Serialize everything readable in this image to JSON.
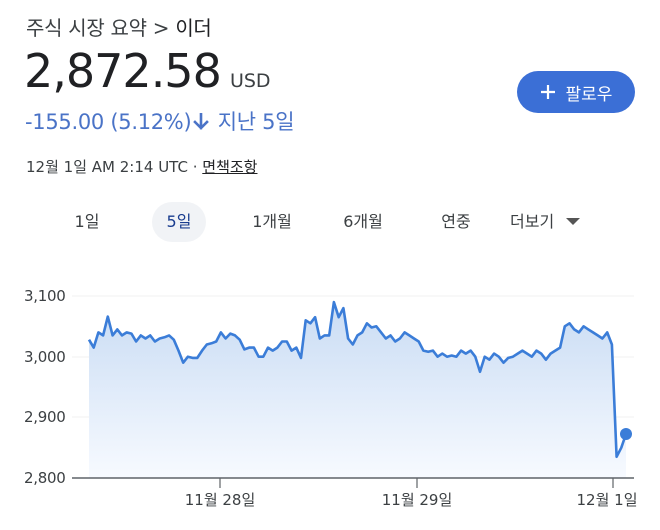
{
  "header": {
    "breadcrumb_parent": "주식 시장 요약",
    "breadcrumb_sep": ">",
    "breadcrumb_current": "이더",
    "price": "2,872.58",
    "currency": "USD",
    "change_value": "-155.00",
    "change_percent": "(5.12%)",
    "change_direction_icon": "arrow-down-icon",
    "change_period": "지난 5일",
    "change_color": "#4a73c7",
    "follow_button_label": "팔로우",
    "follow_button_color": "#3b6fd6"
  },
  "meta": {
    "timestamp": "12월 1일 AM 2:14 UTC",
    "separator": "·",
    "disclaimer_link": "면책조항"
  },
  "tabs": [
    {
      "label": "1일",
      "active": false
    },
    {
      "label": "5일",
      "active": true
    },
    {
      "label": "1개월",
      "active": false
    },
    {
      "label": "6개월",
      "active": false
    },
    {
      "label": "연중",
      "active": false
    },
    {
      "label": "더보기",
      "active": false
    }
  ],
  "chart_data": {
    "type": "area",
    "title": "",
    "xlabel": "",
    "ylabel": "",
    "ylim": [
      2800,
      3100
    ],
    "yticks": [
      "3,100",
      "3,000",
      "2,900",
      "2,800"
    ],
    "xticks": [
      "11월 28일",
      "11월 29일",
      "12월 1일"
    ],
    "grid": true,
    "legend": "none",
    "line_color": "#3b7dd8",
    "series": [
      {
        "name": "이더 (USD)",
        "x": [
          0,
          1,
          2,
          3,
          4,
          5,
          6,
          7,
          8,
          9,
          10,
          11,
          12,
          13,
          14,
          15,
          16,
          17,
          18,
          19,
          20,
          21,
          22,
          23,
          24,
          25,
          26,
          27,
          28,
          29,
          30,
          31,
          32,
          33,
          34,
          35,
          36,
          37,
          38,
          39,
          40,
          41,
          42,
          43,
          44,
          45,
          46,
          47,
          48,
          49,
          50,
          51,
          52,
          53,
          54,
          55,
          56,
          57,
          58,
          59,
          60,
          61,
          62,
          63,
          64,
          65,
          66,
          67,
          68,
          69,
          70,
          71,
          72,
          73,
          74,
          75,
          76,
          77,
          78,
          79,
          80,
          81,
          82,
          83,
          84,
          85,
          86,
          87,
          88,
          89,
          90,
          91,
          92,
          93,
          94,
          95,
          96,
          97,
          98,
          99,
          100
        ],
        "values": [
          3028,
          3015,
          3040,
          3035,
          3066,
          3035,
          3045,
          3035,
          3040,
          3038,
          3025,
          3035,
          3030,
          3035,
          3025,
          3030,
          3032,
          3035,
          3028,
          3010,
          2990,
          3000,
          2998,
          2998,
          3010,
          3020,
          3022,
          3025,
          3040,
          3030,
          3038,
          3035,
          3028,
          3012,
          3015,
          3015,
          3000,
          3000,
          3015,
          3010,
          3015,
          3025,
          3025,
          3010,
          3015,
          2998,
          3060,
          3055,
          3065,
          3030,
          3035,
          3035,
          3090,
          3065,
          3080,
          3030,
          3020,
          3035,
          3040,
          3055,
          3048,
          3050,
          3040,
          3030,
          3035,
          3025,
          3030,
          3040,
          3035,
          3030,
          3025,
          3010,
          3008,
          3010,
          3000,
          3005,
          3000,
          3002,
          3000,
          3010,
          3005,
          3010,
          3000,
          2975,
          3000,
          2995,
          3005,
          3000,
          2990,
          2998,
          3000,
          3005,
          3010,
          3005,
          3000,
          3010,
          3005,
          2995,
          3005,
          3010,
          3015
        ]
      }
    ],
    "last_value": 2872.58,
    "last_points": [
      3050,
      3055,
      3045,
      3040,
      3050,
      3045,
      3040,
      3035,
      3030,
      3040,
      3020,
      2835,
      2850,
      2872.58
    ]
  }
}
